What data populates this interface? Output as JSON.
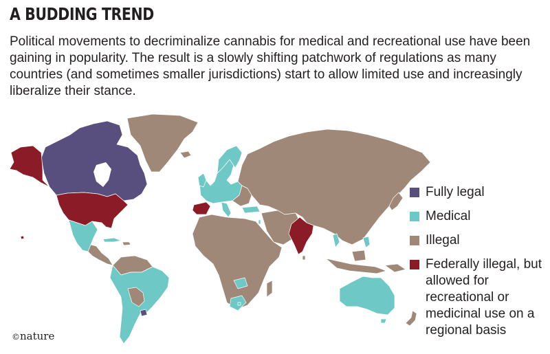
{
  "header": {
    "title": "A BUDDING TREND",
    "description": "Political movements to decriminalize cannabis for medical and recreational use have been gaining in popularity. The result is a slowly shifting patchwork of regulations as many countries (and sometimes smaller jurisdictions) start to allow limited use and increasingly liberalize their stance."
  },
  "legend": {
    "items": [
      {
        "label": "Fully legal",
        "color": "#584f7e"
      },
      {
        "label": "Medical",
        "color": "#6ec8c5"
      },
      {
        "label": "Illegal",
        "color": "#9f8877"
      },
      {
        "label": "Federally illegal, but allowed for recreational or medicinal use on a regional basis",
        "color": "#8b1c27"
      }
    ]
  },
  "colors": {
    "fully_legal": "#584f7e",
    "medical": "#6ec8c5",
    "illegal": "#9f8877",
    "regional": "#8b1c27",
    "borders": "#ffffff"
  },
  "credit": {
    "symbol": "©",
    "brand": "nature"
  }
}
